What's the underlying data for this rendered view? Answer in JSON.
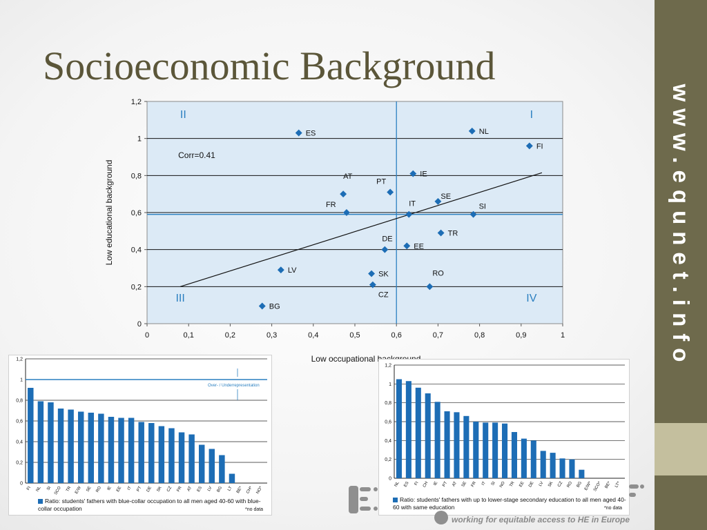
{
  "page": {
    "title": "Socioeconomic Background",
    "side_url": "www.equnet.info",
    "footer_tagline": "working for equitable access to HE in Europe"
  },
  "chart_data": [
    {
      "type": "scatter",
      "title": "",
      "xlabel": "Low occupational background",
      "ylabel": "Low educational background",
      "xlim": [
        0,
        1
      ],
      "ylim": [
        0,
        1.2
      ],
      "x_ticks": [
        "0",
        "0,1",
        "0,2",
        "0,3",
        "0,4",
        "0,5",
        "0,6",
        "0,7",
        "0,8",
        "0,9",
        "1"
      ],
      "y_ticks": [
        "0",
        "0,2",
        "0,4",
        "0,6",
        "0,8",
        "1",
        "1,2"
      ],
      "grid": "horizontal",
      "annotation": "Corr=0.41",
      "quadrants": [
        "I",
        "II",
        "III",
        "IV"
      ],
      "mean_x": 0.6,
      "mean_y": 0.59,
      "trendline": {
        "x": [
          0.08,
          0.95
        ],
        "y": [
          0.2,
          0.815
        ]
      },
      "points": [
        {
          "label": "ES",
          "x": 0.365,
          "y": 1.03
        },
        {
          "label": "NL",
          "x": 0.782,
          "y": 1.04
        },
        {
          "label": "FI",
          "x": 0.92,
          "y": 0.96
        },
        {
          "label": "IE",
          "x": 0.64,
          "y": 0.81
        },
        {
          "label": "PT",
          "x": 0.585,
          "y": 0.71
        },
        {
          "label": "AT",
          "x": 0.472,
          "y": 0.7
        },
        {
          "label": "SE",
          "x": 0.7,
          "y": 0.66
        },
        {
          "label": "FR",
          "x": 0.48,
          "y": 0.6
        },
        {
          "label": "IT",
          "x": 0.63,
          "y": 0.59
        },
        {
          "label": "SI",
          "x": 0.785,
          "y": 0.59
        },
        {
          "label": "TR",
          "x": 0.707,
          "y": 0.49
        },
        {
          "label": "DE",
          "x": 0.572,
          "y": 0.4
        },
        {
          "label": "EE",
          "x": 0.625,
          "y": 0.42
        },
        {
          "label": "LV",
          "x": 0.322,
          "y": 0.29
        },
        {
          "label": "SK",
          "x": 0.54,
          "y": 0.27
        },
        {
          "label": "CZ",
          "x": 0.543,
          "y": 0.21
        },
        {
          "label": "RO",
          "x": 0.68,
          "y": 0.2
        },
        {
          "label": "BG",
          "x": 0.277,
          "y": 0.095
        }
      ]
    },
    {
      "type": "bar",
      "title": "",
      "ylim": [
        0,
        1.2
      ],
      "y_ticks": [
        "0",
        "0,2",
        "0,4",
        "0,6",
        "0,8",
        "1",
        "1,2"
      ],
      "reference_line": 1,
      "annotation": "Over- / Underrepresentation",
      "categories": [
        "FI",
        "NL",
        "SI",
        "SCO",
        "TR",
        "E/W",
        "SE",
        "RO",
        "IE",
        "EE",
        "IT",
        "PT",
        "DE",
        "SK",
        "CZ",
        "FR",
        "AT",
        "ES",
        "LV",
        "BG",
        "LT",
        "BE*",
        "CH*",
        "NO*"
      ],
      "values": [
        0.92,
        0.79,
        0.78,
        0.72,
        0.71,
        0.69,
        0.68,
        0.67,
        0.64,
        0.63,
        0.63,
        0.59,
        0.58,
        0.55,
        0.53,
        0.49,
        0.47,
        0.37,
        0.33,
        0.27,
        0.09,
        null,
        null,
        null
      ],
      "legend": "Ratio: students' fathers with blue-collar occupation to all men aged 40-60 with blue-collar occupation",
      "footnote": "*no data"
    },
    {
      "type": "bar",
      "title": "",
      "ylim": [
        0,
        1.2
      ],
      "y_ticks": [
        "0",
        "0,2",
        "0,4",
        "0,6",
        "0,8",
        "1",
        "1,2"
      ],
      "categories": [
        "NL",
        "ES",
        "FI",
        "CH",
        "IE",
        "PT",
        "AT",
        "SE",
        "FR",
        "IT",
        "SI",
        "NO",
        "TR",
        "EE",
        "DE",
        "LV",
        "SK",
        "CZ",
        "RO",
        "BG",
        "E/W*",
        "SCO*",
        "BE*",
        "LT*"
      ],
      "values": [
        1.05,
        1.03,
        0.96,
        0.9,
        0.81,
        0.71,
        0.7,
        0.66,
        0.6,
        0.59,
        0.59,
        0.58,
        0.49,
        0.42,
        0.4,
        0.29,
        0.27,
        0.21,
        0.2,
        0.09,
        null,
        null,
        null,
        null
      ],
      "legend": "Ratio: students' fathers with up to lower-stage secondary education to all men aged 40-60 with same education",
      "footnote": "*no data"
    }
  ]
}
